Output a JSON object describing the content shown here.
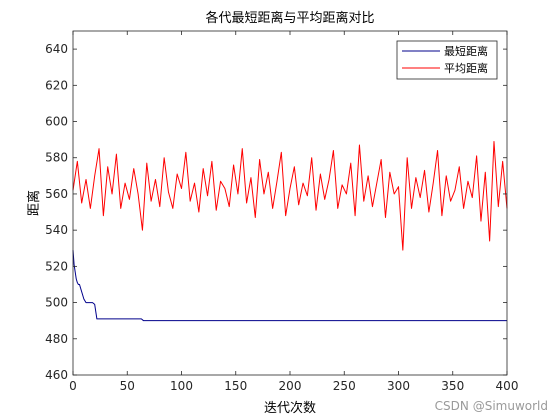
{
  "chart_data": {
    "type": "line",
    "title": "各代最短距离与平均距离对比",
    "xlabel": "迭代次数",
    "ylabel": "距离",
    "xlim": [
      0,
      400
    ],
    "ylim": [
      460,
      650
    ],
    "xticks": [
      0,
      50,
      100,
      150,
      200,
      250,
      300,
      350,
      400
    ],
    "yticks": [
      460,
      480,
      500,
      520,
      540,
      560,
      580,
      600,
      620,
      640
    ],
    "grid": false,
    "legend_position": "top-right",
    "series": [
      {
        "name": "最短距离",
        "color": "#00008B",
        "x": [
          0,
          1,
          2,
          3,
          4,
          5,
          6,
          7,
          8,
          9,
          10,
          12,
          14,
          16,
          18,
          20,
          22,
          25,
          30,
          40,
          50,
          60,
          63,
          65,
          70,
          100,
          200,
          300,
          400
        ],
        "y": [
          529,
          521,
          517,
          513,
          511,
          510,
          510,
          508,
          506,
          504,
          502,
          500,
          500,
          500,
          500,
          499,
          491,
          491,
          491,
          491,
          491,
          491,
          491,
          490,
          490,
          490,
          490,
          490,
          490
        ]
      },
      {
        "name": "平均距离",
        "color": "#FF0000",
        "x": [
          0,
          4,
          8,
          12,
          16,
          20,
          24,
          28,
          32,
          36,
          40,
          44,
          48,
          52,
          56,
          60,
          64,
          68,
          72,
          76,
          80,
          84,
          88,
          92,
          96,
          100,
          104,
          108,
          112,
          116,
          120,
          124,
          128,
          132,
          136,
          140,
          144,
          148,
          152,
          156,
          160,
          164,
          168,
          172,
          176,
          180,
          184,
          188,
          192,
          196,
          200,
          204,
          208,
          212,
          216,
          220,
          224,
          228,
          232,
          236,
          240,
          244,
          248,
          252,
          256,
          260,
          264,
          268,
          272,
          276,
          280,
          284,
          288,
          292,
          296,
          300,
          304,
          308,
          312,
          316,
          320,
          324,
          328,
          332,
          336,
          340,
          344,
          348,
          352,
          356,
          360,
          364,
          368,
          372,
          376,
          380,
          384,
          388,
          392,
          396,
          400
        ],
        "y": [
          562,
          578,
          555,
          568,
          552,
          570,
          585,
          548,
          575,
          560,
          582,
          552,
          566,
          557,
          574,
          560,
          540,
          577,
          556,
          568,
          553,
          580,
          561,
          552,
          571,
          563,
          583,
          556,
          566,
          550,
          574,
          559,
          578,
          551,
          567,
          563,
          553,
          576,
          560,
          585,
          555,
          569,
          547,
          579,
          560,
          572,
          552,
          567,
          583,
          548,
          563,
          575,
          554,
          566,
          559,
          580,
          551,
          571,
          557,
          568,
          584,
          552,
          565,
          560,
          577,
          548,
          587,
          556,
          570,
          553,
          566,
          579,
          547,
          572,
          560,
          564,
          529,
          580,
          552,
          569,
          558,
          573,
          550,
          566,
          584,
          548,
          570,
          556,
          562,
          575,
          552,
          567,
          558,
          581,
          545,
          572,
          534,
          589,
          553,
          578,
          552
        ]
      }
    ]
  },
  "watermark": "CSDN @Simuworld"
}
